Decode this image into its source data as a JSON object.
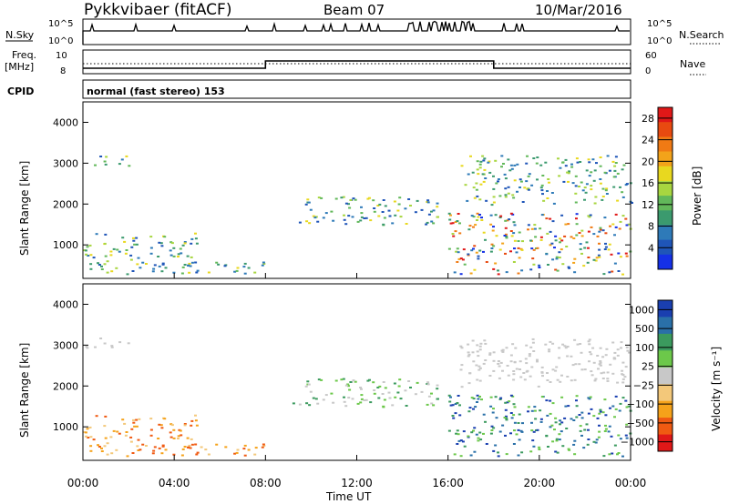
{
  "header": {
    "site": "Pykkvibaer (fitACF)",
    "beam": "Beam 07",
    "date": "10/Mar/2016"
  },
  "strips": {
    "nsky_label": "N.Sky",
    "nsky_ticks": [
      "10^5",
      "10^0"
    ],
    "nsearch_label": "N.Search",
    "nsearch_ticks": [
      "10^5",
      "10^0"
    ],
    "freq_label_1": "Freq.",
    "freq_label_2": "[MHz]",
    "freq_ticks": [
      "10",
      "8"
    ],
    "nave_label": "Nave",
    "nave_ticks": [
      "60",
      "0"
    ],
    "cpid_label": "CPID",
    "cpid_value": "normal (fast stereo) 153"
  },
  "colors": {
    "power": [
      "#1530e6",
      "#1f55b8",
      "#2e7ab8",
      "#3b9a6e",
      "#62b85a",
      "#a8d640",
      "#e8d81f",
      "#f3a31a",
      "#f07a14",
      "#e84a10",
      "#e01818"
    ],
    "velocity_neg": [
      "#e01818",
      "#f05a12",
      "#f5a21a",
      "#f3c87a",
      "#c8c8c8"
    ],
    "velocity_pos": [
      "#c8c8c8",
      "#6cc84a",
      "#3b9a5e",
      "#2a70a8",
      "#1a3fb0"
    ]
  },
  "chart_data": [
    {
      "type": "heatmap",
      "title": "",
      "xlabel": "",
      "ylabel": "Slant Range [km]",
      "xlim": [
        "00:00",
        "24:00"
      ],
      "ylim": [
        180,
        4500
      ],
      "yticks": [
        "1000",
        "2000",
        "3000",
        "4000"
      ],
      "colorbar": {
        "label": "Power [dB]",
        "ticks": [
          "4",
          "8",
          "12",
          "16",
          "20",
          "24",
          "28"
        ],
        "range": [
          0,
          30
        ]
      },
      "features": [
        {
          "start": "00:00",
          "end": "02:00",
          "range_km": [
            2950,
            3200
          ],
          "level": "3-8 dB"
        },
        {
          "start": "00:00",
          "end": "05:00",
          "range_km": [
            300,
            1300
          ],
          "level": "4-20 dB"
        },
        {
          "start": "04:30",
          "end": "08:00",
          "range_km": [
            300,
            600
          ],
          "level": "8-24 dB"
        },
        {
          "start": "09:00",
          "end": "15:30",
          "range_km": [
            1500,
            2200
          ],
          "level": "8-24 dB"
        },
        {
          "start": "16:00",
          "end": "24:00",
          "range_km": [
            300,
            1800
          ],
          "level": "12-28 dB"
        },
        {
          "start": "16:30",
          "end": "24:00",
          "range_km": [
            2000,
            3200
          ],
          "level": "4-16 dB"
        }
      ]
    },
    {
      "type": "heatmap",
      "title": "",
      "xlabel": "Time UT",
      "ylabel": "Slant Range [km]",
      "xlim": [
        "00:00",
        "24:00"
      ],
      "ylim": [
        180,
        4500
      ],
      "yticks": [
        "1000",
        "2000",
        "3000",
        "4000"
      ],
      "xticks": [
        "00:00",
        "04:00",
        "08:00",
        "12:00",
        "16:00",
        "20:00",
        "00:00"
      ],
      "colorbar": {
        "label": "Velocity [m s⁻¹]",
        "ticks": [
          "1000",
          "500",
          "100",
          "25",
          "−25",
          "−100",
          "−500",
          "−1000"
        ]
      },
      "features": [
        {
          "start": "00:00",
          "end": "02:00",
          "range_km": [
            2950,
            3200
          ],
          "level": "ground scatter"
        },
        {
          "start": "00:00",
          "end": "05:00",
          "range_km": [
            300,
            1300
          ],
          "level": "-100 to -500 m/s"
        },
        {
          "start": "04:30",
          "end": "08:00",
          "range_km": [
            300,
            600
          ],
          "level": "-100 to -500 m/s"
        },
        {
          "start": "09:00",
          "end": "15:30",
          "range_km": [
            1500,
            2200
          ],
          "level": "25 to 100 m/s"
        },
        {
          "start": "16:00",
          "end": "24:00",
          "range_km": [
            300,
            1800
          ],
          "level": "100 to 500 m/s"
        },
        {
          "start": "16:30",
          "end": "24:00",
          "range_km": [
            2000,
            3200
          ],
          "level": "ground scatter"
        }
      ]
    }
  ],
  "nave_freq_series": {
    "freq_mhz_segments": [
      {
        "start": "00:00",
        "end": "08:00",
        "value": 8.6
      },
      {
        "start": "08:00",
        "end": "18:00",
        "value": 9.4
      },
      {
        "start": "18:00",
        "end": "24:00",
        "value": 8.6
      }
    ],
    "nave_dotted": 30
  }
}
